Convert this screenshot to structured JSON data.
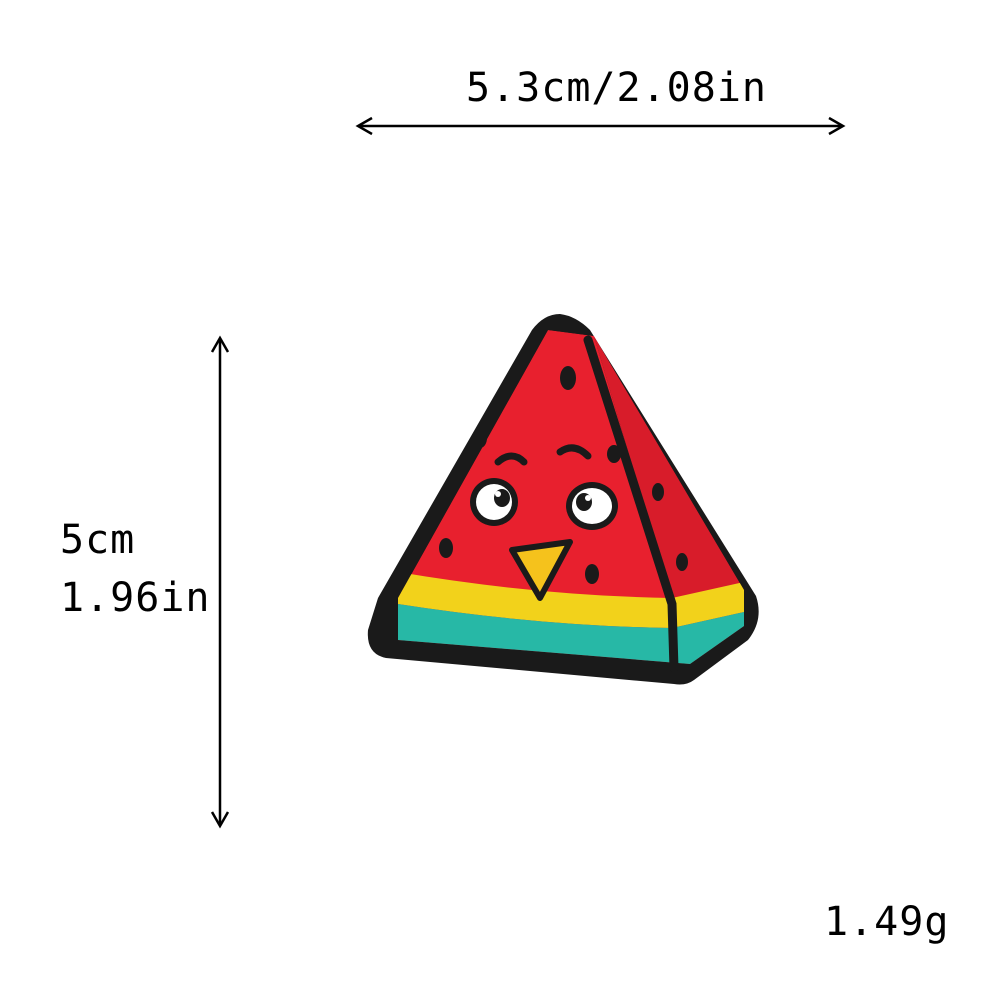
{
  "dimensions": {
    "width_text": "5.3cm/2.08in",
    "height_cm_text": "5cm",
    "height_in_text": "1.96in"
  },
  "weight_text": "1.49g",
  "product": {
    "icon": "watermelon-slice-patch-icon",
    "colors": {
      "outline": "#1a1a1a",
      "flesh": "#e8202e",
      "flesh_shadow": "#c81a26",
      "rind_yellow": "#f2d21b",
      "rind_teal": "#27b8a6",
      "beak": "#f5c21c",
      "seed": "#1a1a1a",
      "eye_white": "#ffffff"
    }
  }
}
